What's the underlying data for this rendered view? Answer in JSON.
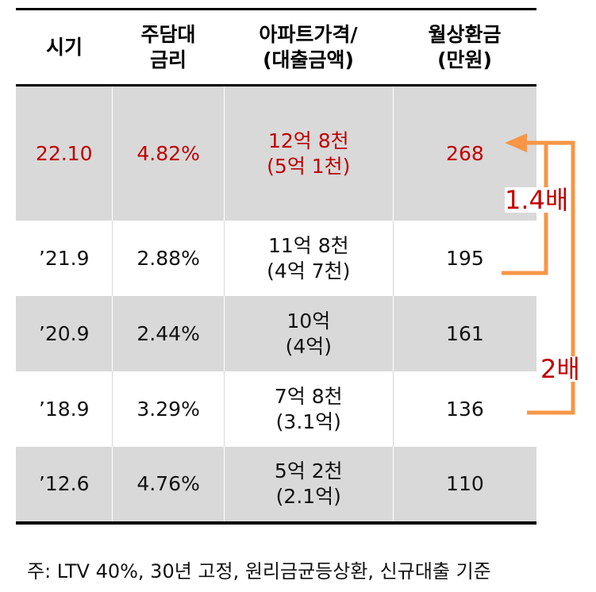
{
  "table": {
    "headers": [
      "시기",
      "주담대\n금리",
      "아파트가격/\n(대출금액)",
      "월상환금\n(만원)"
    ],
    "rows": [
      {
        "period": "22.10",
        "rate": "4.82%",
        "price": "12억 8천\n(5억 1천)",
        "payment": "268",
        "highlight": true,
        "shaded": true
      },
      {
        "period": "’21.9",
        "rate": "2.88%",
        "price": "11억 8천\n(4억 7천)",
        "payment": "195",
        "highlight": false,
        "shaded": false
      },
      {
        "period": "’20.9",
        "rate": "2.44%",
        "price": "10억\n(4억)",
        "payment": "161",
        "highlight": false,
        "shaded": true
      },
      {
        "period": "’18.9",
        "rate": "3.29%",
        "price": "7억 8천\n(3.1억)",
        "payment": "136",
        "highlight": false,
        "shaded": false
      },
      {
        "period": "’12.6",
        "rate": "4.76%",
        "price": "5억 2천\n(2.1억)",
        "payment": "110",
        "highlight": false,
        "shaded": true
      }
    ]
  },
  "annotations": {
    "ratio_1": "1.4배",
    "ratio_2": "2배"
  },
  "note": "주: LTV 40%, 30년 고정, 원리금균등상환, 신규대출 기준",
  "colors": {
    "highlight_text": "#c00000",
    "arrow": "#f79646",
    "row_shade": "#d9d9d9",
    "rule": "#000000"
  }
}
